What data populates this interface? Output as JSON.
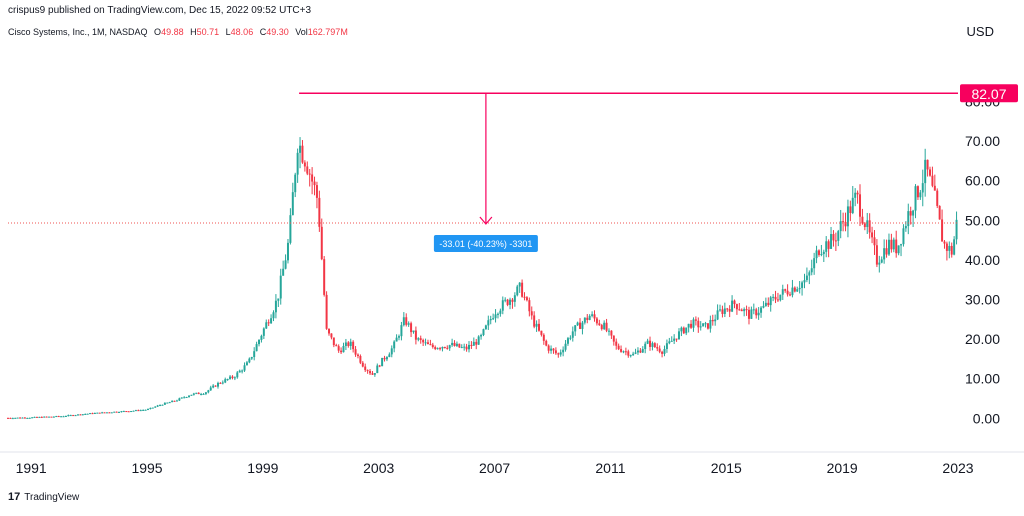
{
  "header": {
    "published": "crispus9 published on TradingView.com, Dec 15, 2022 09:52 UTC+3",
    "symbol": "Cisco Systems, Inc., 1M, NASDAQ",
    "o_label": "O",
    "o": "49.88",
    "h_label": "H",
    "h": "50.71",
    "l_label": "L",
    "l": "48.06",
    "c_label": "C",
    "c": "49.30",
    "vol_label": "Vol",
    "vol": "162.797M",
    "currency": "USD"
  },
  "footer": {
    "logo_mark": "17",
    "brand": "TradingView"
  },
  "colors": {
    "up": "#26a69a",
    "down": "#f23645",
    "accent": "#f7005e",
    "measure": "#2962ff",
    "measure_box": "#2196f3",
    "current": "#ef5350"
  },
  "chart_data": {
    "type": "candlestick",
    "title": "Cisco Systems, Inc., 1M, NASDAQ",
    "ylim": [
      -8,
      95
    ],
    "xlim": [
      1990.2,
      2023.0
    ],
    "yticks": [
      "0.00",
      "10.00",
      "20.00",
      "30.00",
      "40.00",
      "50.00",
      "60.00",
      "70.00",
      "80.00"
    ],
    "ytick_values": [
      0,
      10,
      20,
      30,
      40,
      50,
      60,
      70,
      80
    ],
    "xticks": [
      "1991",
      "1995",
      "1999",
      "2003",
      "2007",
      "2011",
      "2015",
      "2019",
      "2023"
    ],
    "xtick_values": [
      1991,
      1995,
      1999,
      2003,
      2007,
      2011,
      2015,
      2019,
      2023
    ],
    "high_price": 82.07,
    "high_price_label": "82.07",
    "current_price": 49.3,
    "measure": {
      "from_x": 2006.7,
      "from_value": 82.07,
      "to_value": 49.06,
      "label": "-33.01 (-40.23%) -3301"
    },
    "series": [
      {
        "name": "CSCO",
        "values": [
          [
            1990.2,
            0.1
          ],
          [
            1991.0,
            0.2
          ],
          [
            1992.0,
            0.5
          ],
          [
            1993.0,
            1.2
          ],
          [
            1994.0,
            1.7
          ],
          [
            1994.5,
            1.9
          ],
          [
            1995.0,
            2.2
          ],
          [
            1995.5,
            3.5
          ],
          [
            1996.0,
            4.5
          ],
          [
            1996.5,
            6.0
          ],
          [
            1997.0,
            6.5
          ],
          [
            1997.5,
            9.0
          ],
          [
            1998.0,
            10.5
          ],
          [
            1998.5,
            14.0
          ],
          [
            1999.0,
            22.0
          ],
          [
            1999.5,
            30.0
          ],
          [
            1999.9,
            45.0
          ],
          [
            2000.2,
            70.0
          ],
          [
            2000.5,
            65.0
          ],
          [
            2000.9,
            55.0
          ],
          [
            2001.2,
            22.0
          ],
          [
            2001.6,
            17.0
          ],
          [
            2002.0,
            19.0
          ],
          [
            2002.5,
            13.0
          ],
          [
            2002.8,
            11.0
          ],
          [
            2003.0,
            13.5
          ],
          [
            2003.5,
            18.0
          ],
          [
            2003.9,
            25.0
          ],
          [
            2004.3,
            20.0
          ],
          [
            2004.8,
            18.0
          ],
          [
            2005.5,
            18.5
          ],
          [
            2006.0,
            17.5
          ],
          [
            2006.5,
            20.0
          ],
          [
            2007.0,
            27.0
          ],
          [
            2007.5,
            30.0
          ],
          [
            2007.9,
            33.0
          ],
          [
            2008.3,
            25.0
          ],
          [
            2008.8,
            18.0
          ],
          [
            2009.2,
            16.0
          ],
          [
            2009.7,
            22.0
          ],
          [
            2010.3,
            26.0
          ],
          [
            2010.8,
            23.0
          ],
          [
            2011.2,
            18.0
          ],
          [
            2011.8,
            16.0
          ],
          [
            2012.3,
            19.0
          ],
          [
            2012.8,
            17.0
          ],
          [
            2013.3,
            21.0
          ],
          [
            2013.8,
            24.0
          ],
          [
            2014.3,
            23.0
          ],
          [
            2014.8,
            27.0
          ],
          [
            2015.3,
            29.0
          ],
          [
            2015.8,
            26.0
          ],
          [
            2016.3,
            28.0
          ],
          [
            2016.8,
            31.0
          ],
          [
            2017.3,
            33.0
          ],
          [
            2017.8,
            35.0
          ],
          [
            2018.2,
            43.0
          ],
          [
            2018.7,
            45.0
          ],
          [
            2019.2,
            52.0
          ],
          [
            2019.5,
            56.0
          ],
          [
            2019.9,
            47.0
          ],
          [
            2020.2,
            40.0
          ],
          [
            2020.6,
            44.0
          ],
          [
            2020.9,
            43.0
          ],
          [
            2021.3,
            52.0
          ],
          [
            2021.7,
            59.0
          ],
          [
            2021.9,
            63.0
          ],
          [
            2022.2,
            55.0
          ],
          [
            2022.5,
            44.0
          ],
          [
            2022.8,
            42.0
          ],
          [
            2022.95,
            49.3
          ]
        ]
      }
    ]
  }
}
